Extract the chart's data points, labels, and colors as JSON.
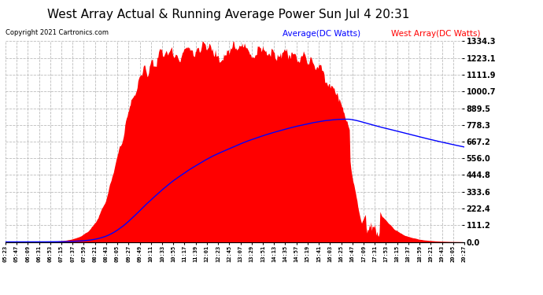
{
  "title": "West Array Actual & Running Average Power Sun Jul 4 20:31",
  "copyright": "Copyright 2021 Cartronics.com",
  "legend_labels": [
    "Average(DC Watts)",
    "West Array(DC Watts)"
  ],
  "legend_colors": [
    "blue",
    "red"
  ],
  "yticks": [
    0.0,
    111.2,
    222.4,
    333.6,
    444.8,
    556.0,
    667.2,
    778.3,
    889.5,
    1000.7,
    1111.9,
    1223.1,
    1334.3
  ],
  "ymax": 1334.3,
  "ymin": 0.0,
  "background_color": "#ffffff",
  "plot_bg_color": "#ffffff",
  "grid_color": "#bbbbbb",
  "title_fontsize": 11,
  "title_color": "black",
  "xtick_labels": [
    "05:23",
    "05:47",
    "06:09",
    "06:31",
    "06:53",
    "07:15",
    "07:37",
    "07:59",
    "08:21",
    "08:43",
    "09:05",
    "09:27",
    "09:49",
    "10:11",
    "10:33",
    "10:55",
    "11:17",
    "11:39",
    "12:01",
    "12:23",
    "12:45",
    "13:07",
    "13:29",
    "13:51",
    "14:13",
    "14:35",
    "14:57",
    "15:19",
    "15:41",
    "16:03",
    "16:25",
    "16:47",
    "17:09",
    "17:31",
    "17:53",
    "18:15",
    "18:37",
    "18:59",
    "19:21",
    "19:43",
    "20:05",
    "20:27"
  ],
  "num_points": 600
}
